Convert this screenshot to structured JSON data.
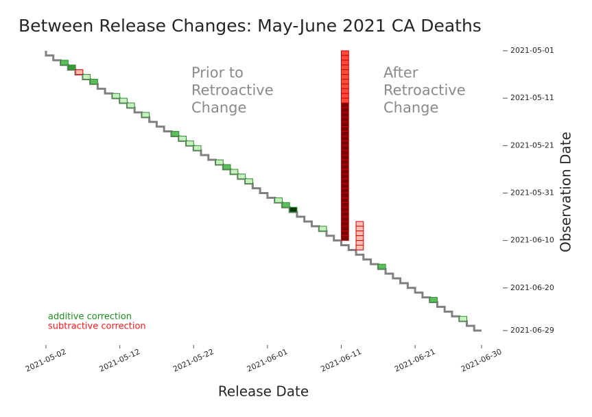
{
  "chart_data": {
    "type": "staircase",
    "title": "Between Release Changes: May-June 2021 CA Deaths",
    "x_label": "Release Date",
    "y_label": "Observation Date",
    "xlim": [
      "2021-05-02",
      "2021-06-30"
    ],
    "ylim": [
      "2021-05-01",
      "2021-06-29"
    ],
    "xticks": [
      "2021-05-02",
      "2021-05-12",
      "2021-05-22",
      "2021-06-01",
      "2021-06-11",
      "2021-06-21",
      "2021-06-30"
    ],
    "yticks": [
      "2021-05-01",
      "2021-05-11",
      "2021-05-21",
      "2021-05-31",
      "2021-06-10",
      "2021-06-20",
      "2021-06-29"
    ],
    "line_color": "#808080",
    "annotations": [
      {
        "lines": [
          "Prior to",
          "Retroactive",
          "Change"
        ]
      },
      {
        "lines": [
          "After",
          "Retroactive",
          "Change"
        ]
      }
    ],
    "legend": [
      {
        "name": "additive correction",
        "color": "#1e8c1e"
      },
      {
        "name": "subtractive correction",
        "color": "#ff1a1a"
      }
    ],
    "corrections": [
      {
        "release": "2021-05-04",
        "from": "2021-05-03",
        "to": "2021-05-03",
        "color": "#5cbf5c",
        "stroke": "#2e8b2e"
      },
      {
        "release": "2021-05-05",
        "from": "2021-05-04",
        "to": "2021-05-04",
        "color": "#3a9a3a",
        "stroke": "#2e8b2e"
      },
      {
        "release": "2021-05-06",
        "from": "2021-05-05",
        "to": "2021-05-05",
        "color": "#ffb8aa",
        "stroke": "#cc0000"
      },
      {
        "release": "2021-05-07",
        "from": "2021-05-06",
        "to": "2021-05-06",
        "color": "#c8efc0",
        "stroke": "#2e8b2e"
      },
      {
        "release": "2021-05-08",
        "from": "2021-05-07",
        "to": "2021-05-07",
        "color": "#5cbf5c",
        "stroke": "#2e8b2e"
      },
      {
        "release": "2021-05-11",
        "from": "2021-05-10",
        "to": "2021-05-10",
        "color": "#c8efc0",
        "stroke": "#2e8b2e"
      },
      {
        "release": "2021-05-12",
        "from": "2021-05-11",
        "to": "2021-05-11",
        "color": "#c8efc0",
        "stroke": "#2e8b2e"
      },
      {
        "release": "2021-05-13",
        "from": "2021-05-12",
        "to": "2021-05-12",
        "color": "#c8efc0",
        "stroke": "#2e8b2e"
      },
      {
        "release": "2021-05-15",
        "from": "2021-05-14",
        "to": "2021-05-14",
        "color": "#c8efc0",
        "stroke": "#2e8b2e"
      },
      {
        "release": "2021-05-19",
        "from": "2021-05-18",
        "to": "2021-05-18",
        "color": "#5cbf5c",
        "stroke": "#2e8b2e"
      },
      {
        "release": "2021-05-20",
        "from": "2021-05-19",
        "to": "2021-05-19",
        "color": "#c8efc0",
        "stroke": "#2e8b2e"
      },
      {
        "release": "2021-05-21",
        "from": "2021-05-20",
        "to": "2021-05-20",
        "color": "#c8efc0",
        "stroke": "#2e8b2e"
      },
      {
        "release": "2021-05-22",
        "from": "2021-05-21",
        "to": "2021-05-21",
        "color": "#c8efc0",
        "stroke": "#2e8b2e"
      },
      {
        "release": "2021-05-25",
        "from": "2021-05-24",
        "to": "2021-05-24",
        "color": "#c8efc0",
        "stroke": "#2e8b2e"
      },
      {
        "release": "2021-05-26",
        "from": "2021-05-25",
        "to": "2021-05-25",
        "color": "#5cbf5c",
        "stroke": "#2e8b2e"
      },
      {
        "release": "2021-05-27",
        "from": "2021-05-26",
        "to": "2021-05-26",
        "color": "#c8efc0",
        "stroke": "#2e8b2e"
      },
      {
        "release": "2021-05-28",
        "from": "2021-05-27",
        "to": "2021-05-27",
        "color": "#c8efc0",
        "stroke": "#2e8b2e"
      },
      {
        "release": "2021-05-29",
        "from": "2021-05-28",
        "to": "2021-05-28",
        "color": "#c8efc0",
        "stroke": "#2e8b2e"
      },
      {
        "release": "2021-06-02",
        "from": "2021-06-01",
        "to": "2021-06-01",
        "color": "#c8efc0",
        "stroke": "#2e8b2e"
      },
      {
        "release": "2021-06-03",
        "from": "2021-06-02",
        "to": "2021-06-02",
        "color": "#5cbf5c",
        "stroke": "#2e8b2e"
      },
      {
        "release": "2021-06-04",
        "from": "2021-06-03",
        "to": "2021-06-03",
        "color": "#0b3b0b",
        "stroke": "#2e8b2e"
      },
      {
        "release": "2021-06-08",
        "from": "2021-06-07",
        "to": "2021-06-07",
        "color": "#c8efc0",
        "stroke": "#2e8b2e"
      },
      {
        "release": "2021-06-11",
        "from": "2021-05-01",
        "to": "2021-05-11",
        "color": "#ff4a3a",
        "stroke": "#cc0000"
      },
      {
        "release": "2021-06-11",
        "from": "2021-05-12",
        "to": "2021-06-09",
        "color": "#7a0000",
        "stroke": "#cc0000"
      },
      {
        "release": "2021-06-13",
        "from": "2021-06-06",
        "to": "2021-06-11",
        "color": "#ffc0b4",
        "stroke": "#cc0000"
      },
      {
        "release": "2021-06-16",
        "from": "2021-06-15",
        "to": "2021-06-15",
        "color": "#5cbf5c",
        "stroke": "#2e8b2e"
      },
      {
        "release": "2021-06-23",
        "from": "2021-06-22",
        "to": "2021-06-22",
        "color": "#5cbf5c",
        "stroke": "#2e8b2e"
      },
      {
        "release": "2021-06-27",
        "from": "2021-06-26",
        "to": "2021-06-26",
        "color": "#c8efc0",
        "stroke": "#2e8b2e"
      }
    ]
  }
}
